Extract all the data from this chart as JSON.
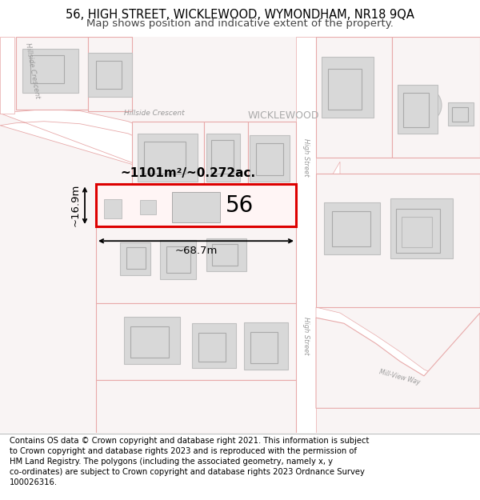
{
  "title": "56, HIGH STREET, WICKLEWOOD, WYMONDHAM, NR18 9QA",
  "subtitle": "Map shows position and indicative extent of the property.",
  "footer": "Contains OS data © Crown copyright and database right 2021. This information is subject\nto Crown copyright and database rights 2023 and is reproduced with the permission of\nHM Land Registry. The polygons (including the associated geometry, namely x, y\nco-ordinates) are subject to Crown copyright and database rights 2023 Ordnance Survey\n100026316.",
  "bg_color": "#ffffff",
  "map_bg": "#f9f4f4",
  "road_color": "#ffffff",
  "road_edge": "#e8aaaa",
  "plot_edge": "#e8aaaa",
  "building_fill": "#d8d8d8",
  "building_edge": "#c0c0c0",
  "highlight_fill": "#fff5f5",
  "highlight_edge": "#dd0000",
  "label_color": "#999999",
  "dim_color": "#000000",
  "area_text": "~1101m²/~0.272ac.",
  "width_text": "~68.7m",
  "height_text": "~16.9m",
  "property_number": "56",
  "title_fontsize": 10.5,
  "subtitle_fontsize": 9.5,
  "footer_fontsize": 7.2
}
